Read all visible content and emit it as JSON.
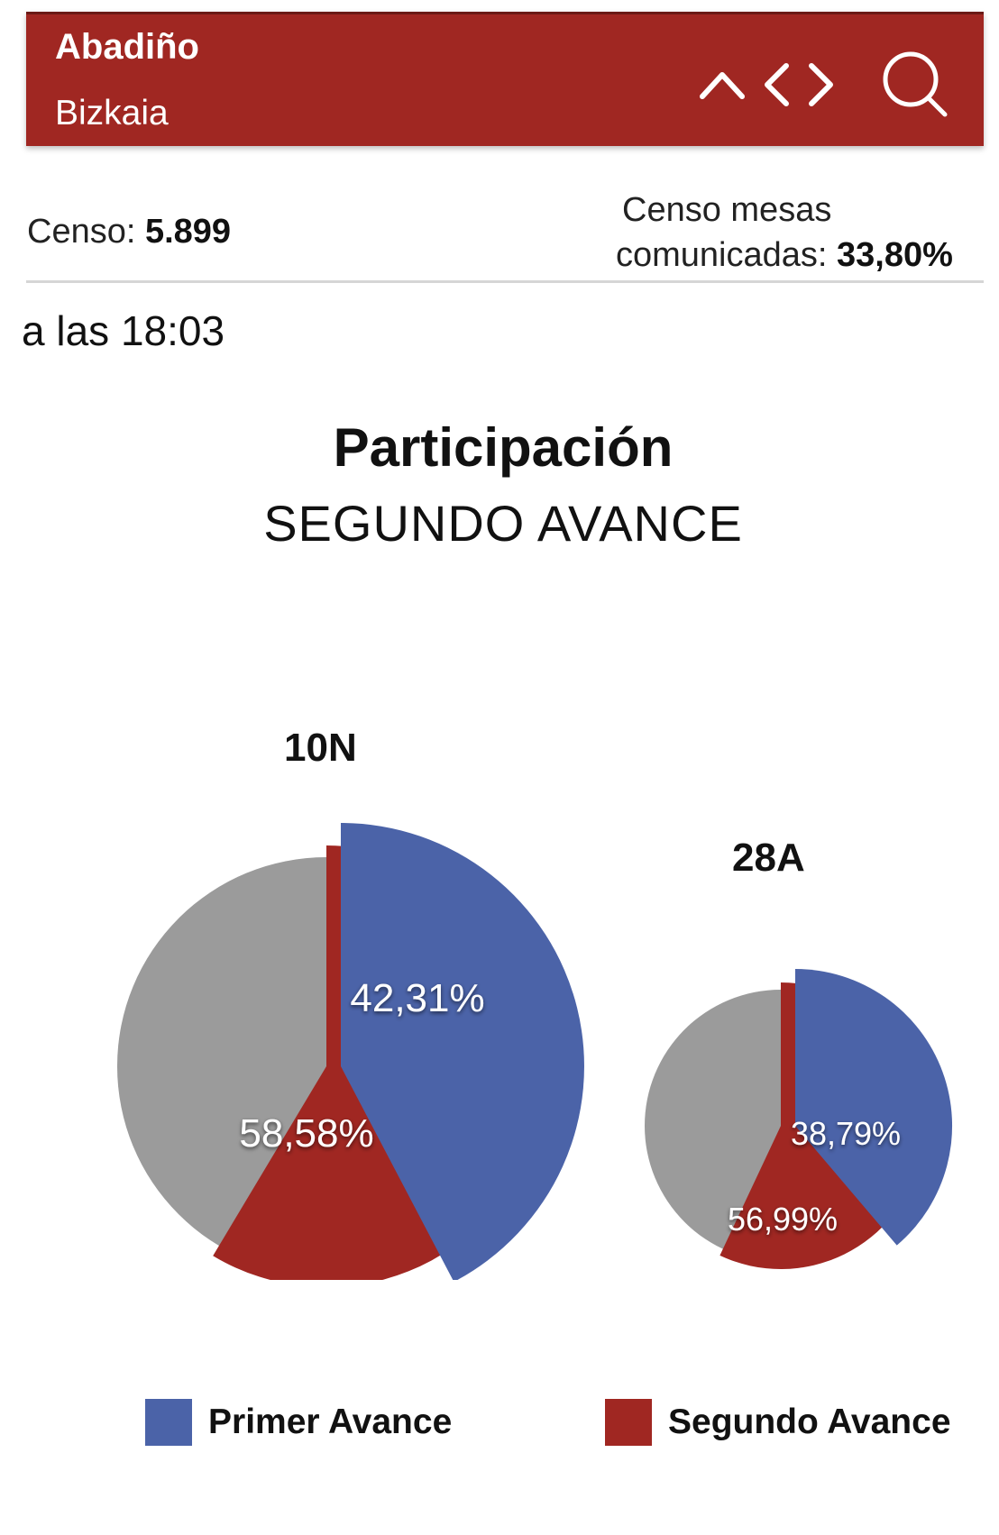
{
  "header": {
    "title": "Abadiño",
    "subtitle": "Bizkaia",
    "icons": [
      "chevron-up-icon",
      "chevron-left-icon",
      "chevron-right-icon",
      "search-icon"
    ]
  },
  "stats": {
    "censo_label": "Censo:",
    "censo_value": "5.899",
    "mesas_label_1": "Censo mesas",
    "mesas_label_2": "comunicadas:",
    "mesas_value": "33,80%"
  },
  "time_text": "a las 18:03",
  "section": {
    "title": "Participación",
    "subtitle": "SEGUNDO AVANCE"
  },
  "colors": {
    "brand": "#a02722",
    "primer": "#4b63a8",
    "segundo": "#a02722",
    "remaining": "#9b9b9b"
  },
  "chart_data": {
    "type": "pie",
    "pies": [
      {
        "name": "10N",
        "primer_avance": 42.31,
        "segundo_avance": 58.58,
        "labels": [
          "42,31%",
          "58,58%"
        ]
      },
      {
        "name": "28A",
        "primer_avance": 38.79,
        "segundo_avance": 56.99,
        "labels": [
          "38,79%",
          "56,99%"
        ]
      }
    ],
    "legend": [
      "Primer Avance",
      "Segundo Avance"
    ]
  }
}
